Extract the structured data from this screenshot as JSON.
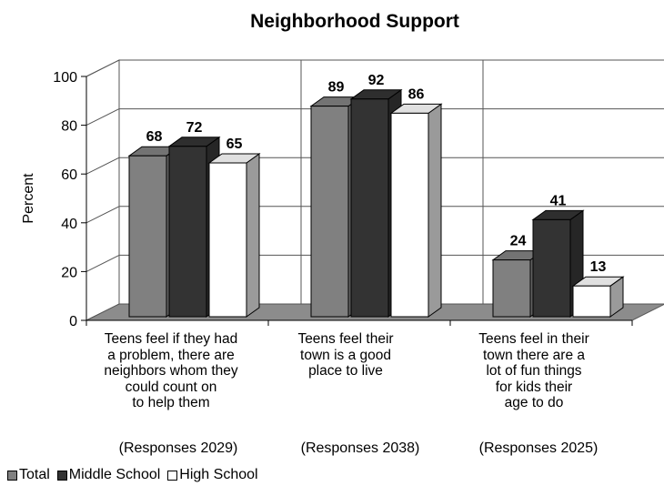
{
  "chart_data": {
    "type": "bar",
    "title": "Neighborhood Support",
    "ylabel": "Percent",
    "xlabel": "",
    "ylim": [
      0,
      100
    ],
    "yticks": [
      0,
      20,
      40,
      60,
      80,
      100
    ],
    "grid": true,
    "legend_position": "bottom-left",
    "categories": [
      "Teens feel if they had\na problem, there are\nneighbors whom they\ncould count on\nto help them",
      "Teens feel their\ntown is a good\nplace to live",
      "Teens feel in their\ntown there are a\nlot of fun things\nfor kids their\nage to do"
    ],
    "responses": [
      "(Responses 2029)",
      "(Responses 2038)",
      "(Responses 2025)"
    ],
    "series": [
      {
        "name": "Total",
        "values": [
          68,
          89,
          24
        ],
        "color": "#808080"
      },
      {
        "name": "Middle School",
        "values": [
          72,
          92,
          41
        ],
        "color": "#333333"
      },
      {
        "name": "High School",
        "values": [
          65,
          86,
          13
        ],
        "color": "#ffffff"
      }
    ]
  }
}
